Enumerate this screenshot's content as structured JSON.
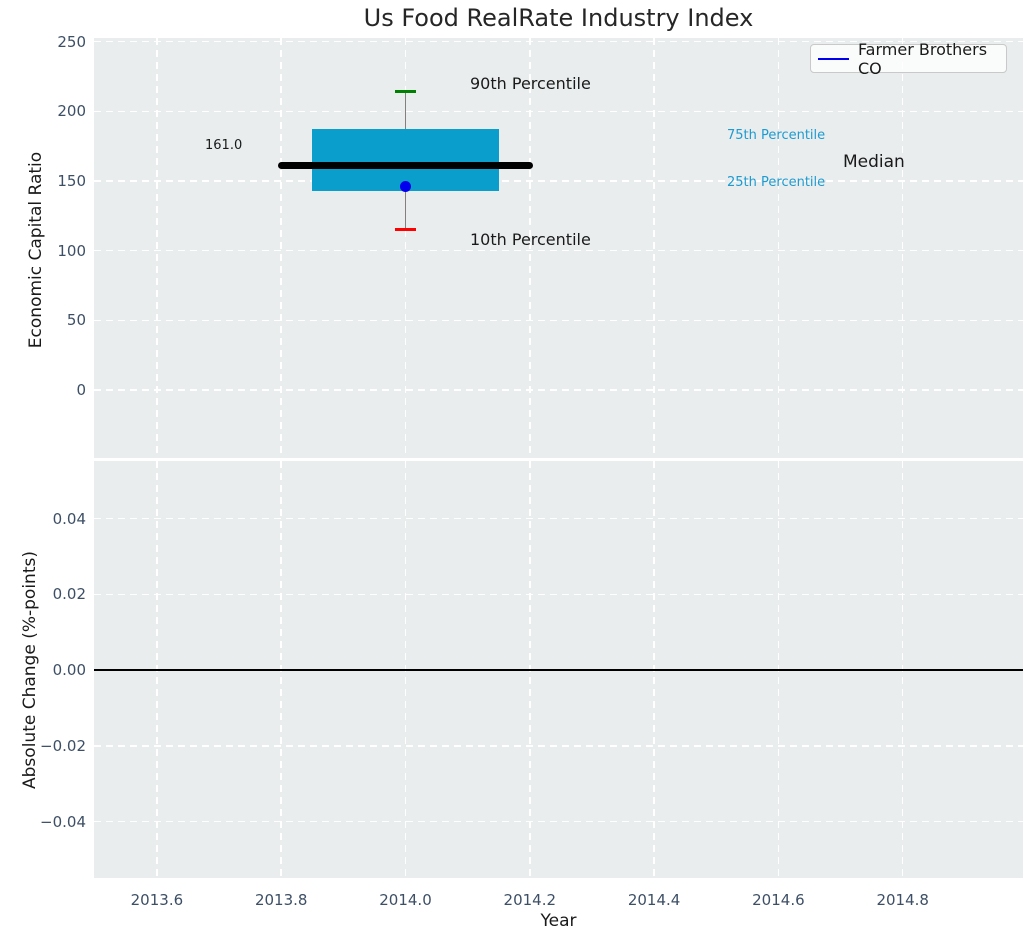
{
  "title": "Us Food RealRate Industry Index",
  "legend": {
    "label": "Farmer Brothers CO"
  },
  "x_axis": {
    "label": "Year"
  },
  "top_plot": {
    "ylabel": "Economic Capital Ratio",
    "annotations": {
      "median_value": "161.0",
      "p90": "90th Percentile",
      "p75": "75th Percentile",
      "median": "Median",
      "p25": "25th Percentile",
      "p10": "10th Percentile"
    }
  },
  "bottom_plot": {
    "ylabel": "Absolute Change (%-points)"
  },
  "colors": {
    "axes_background": "#e9edee",
    "grid": "#ffffff",
    "title_text": "#262626",
    "tick_label": "#3d4f66",
    "axis_label": "#1a1a1a",
    "annotation_dark": "#1a1a1a",
    "annotation_cyan": "#1e9bd0",
    "box_fill": "#0a9ecd",
    "median_line": "#000000",
    "whisker": "#808080",
    "cap_90": "#008000",
    "cap_10": "#ff0000",
    "company_marker": "#0000ee",
    "legend_line": "#0000ee",
    "zero_line": "#000000"
  },
  "chart_data": [
    {
      "type": "box",
      "title": "Us Food RealRate Industry Index",
      "xlabel": "Year",
      "ylabel": "Economic Capital Ratio",
      "grid": true,
      "legend": [
        "Farmer Brothers CO"
      ],
      "legend_position": "upper right",
      "x_center": 2014.0,
      "percentiles": {
        "p10": 115,
        "p25": 143,
        "median": 161.0,
        "p75": 187,
        "p90": 214
      },
      "company_point": {
        "name": "Farmer Brothers CO",
        "x": 2014.0,
        "y": 146
      },
      "median_label": "161.0",
      "annotations": [
        "90th Percentile",
        "75th Percentile",
        "Median",
        "25th Percentile",
        "10th Percentile",
        "161.0"
      ],
      "xlim": [
        2013.5,
        2015.0
      ],
      "ylim": [
        -49,
        253
      ],
      "xticks": {
        "values": [
          2013.6,
          2013.8,
          2014.0,
          2014.2,
          2014.4,
          2014.6,
          2014.8
        ],
        "labels": [
          "2013.6",
          "2013.8",
          "2014.0",
          "2014.2",
          "2014.4",
          "2014.6",
          "2014.8"
        ]
      },
      "yticks": {
        "values": [
          250,
          200,
          150,
          100,
          50,
          0
        ],
        "labels": [
          "250",
          "200",
          "150",
          "100",
          "50",
          "0"
        ]
      }
    },
    {
      "type": "line",
      "xlabel": "Year",
      "ylabel": "Absolute Change (%-points)",
      "grid": true,
      "series": [],
      "zero_line": 0.0,
      "xlim": [
        2013.5,
        2015.0
      ],
      "ylim": [
        -0.055,
        0.055
      ],
      "xticks": {
        "values": [
          2013.6,
          2013.8,
          2014.0,
          2014.2,
          2014.4,
          2014.6,
          2014.8
        ],
        "labels": [
          "2013.6",
          "2013.8",
          "2014.0",
          "2014.2",
          "2014.4",
          "2014.6",
          "2014.8"
        ]
      },
      "yticks": {
        "values": [
          0.04,
          0.02,
          0,
          -0.02,
          -0.04
        ],
        "labels": [
          "0.04",
          "0.02",
          "0.00",
          "−0.02",
          "−0.04"
        ]
      }
    }
  ]
}
